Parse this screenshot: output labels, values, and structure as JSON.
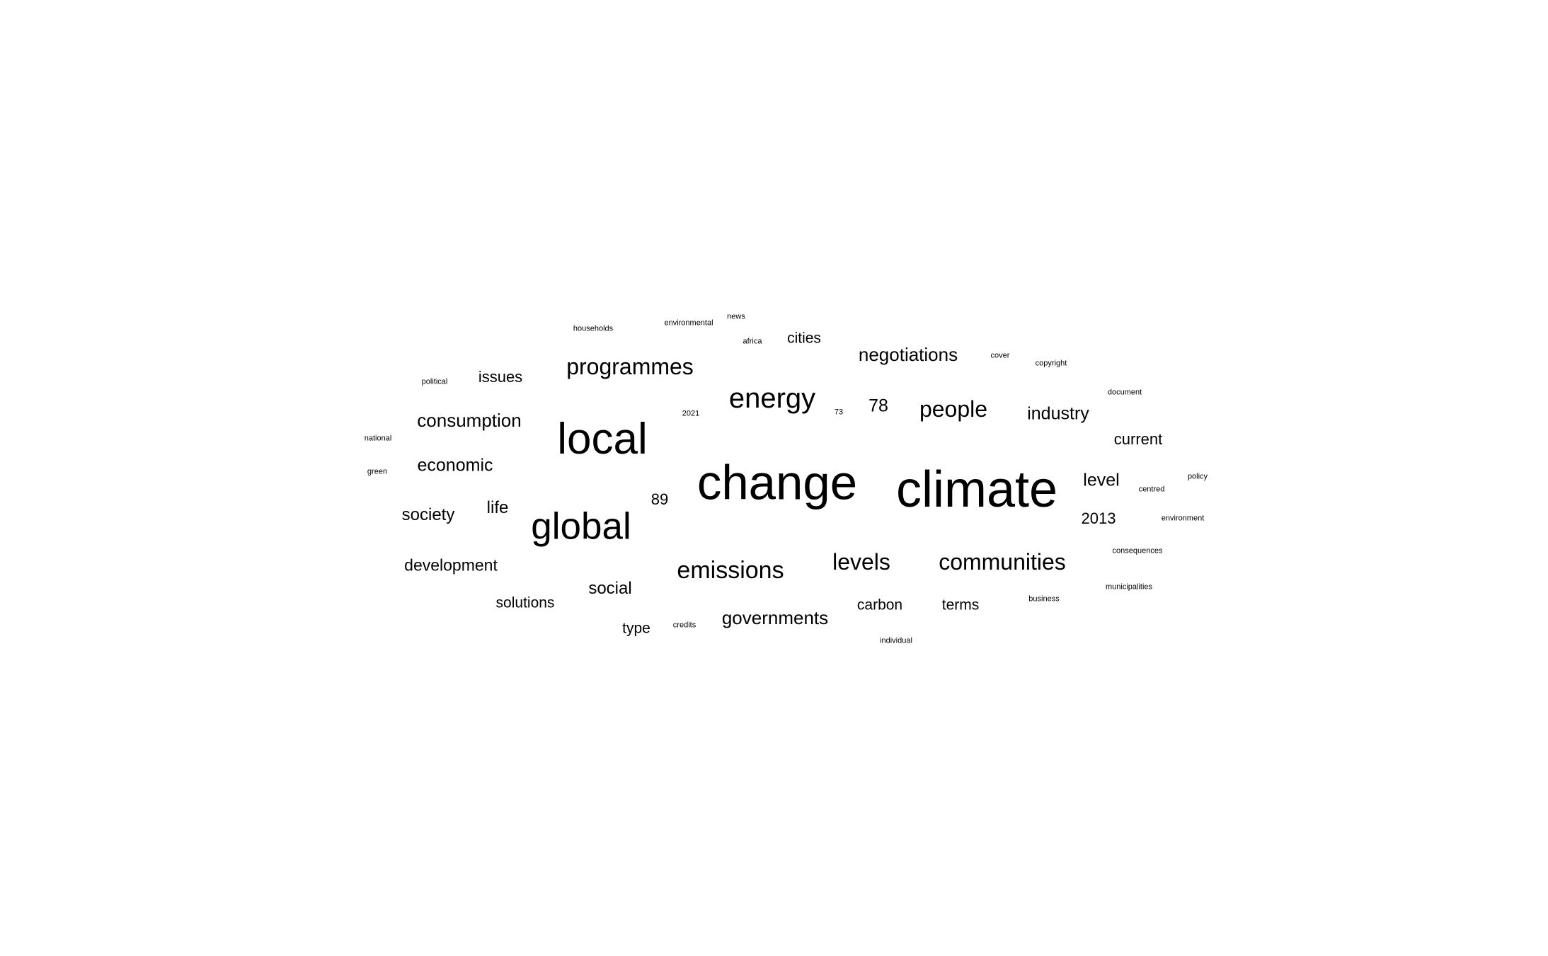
{
  "word_cloud": {
    "text_color": "#000000",
    "background_color": "#ffffff",
    "words": [
      {
        "text": "climate",
        "weight": 100
      },
      {
        "text": "change",
        "weight": 96
      },
      {
        "text": "local",
        "weight": 86
      },
      {
        "text": "global",
        "weight": 74
      },
      {
        "text": "energy",
        "weight": 52
      },
      {
        "text": "emissions",
        "weight": 44
      },
      {
        "text": "communities",
        "weight": 42
      },
      {
        "text": "programmes",
        "weight": 42
      },
      {
        "text": "levels",
        "weight": 42
      },
      {
        "text": "people",
        "weight": 42
      },
      {
        "text": "negotiations",
        "weight": 34
      },
      {
        "text": "consumption",
        "weight": 34
      },
      {
        "text": "governments",
        "weight": 34
      },
      {
        "text": "economic",
        "weight": 33
      },
      {
        "text": "society",
        "weight": 31
      },
      {
        "text": "industry",
        "weight": 32
      },
      {
        "text": "development",
        "weight": 30
      },
      {
        "text": "social",
        "weight": 31
      },
      {
        "text": "level",
        "weight": 32
      },
      {
        "text": "78",
        "weight": 32
      },
      {
        "text": "89",
        "weight": 28
      },
      {
        "text": "life",
        "weight": 31
      },
      {
        "text": "issues",
        "weight": 28
      },
      {
        "text": "cities",
        "weight": 27
      },
      {
        "text": "current",
        "weight": 28
      },
      {
        "text": "2013",
        "weight": 28
      },
      {
        "text": "solutions",
        "weight": 27
      },
      {
        "text": "carbon",
        "weight": 27
      },
      {
        "text": "terms",
        "weight": 27
      },
      {
        "text": "type",
        "weight": 27
      },
      {
        "text": "households",
        "weight": 14
      },
      {
        "text": "environmental",
        "weight": 14
      },
      {
        "text": "news",
        "weight": 13
      },
      {
        "text": "africa",
        "weight": 13
      },
      {
        "text": "political",
        "weight": 13
      },
      {
        "text": "cover",
        "weight": 13
      },
      {
        "text": "copyright",
        "weight": 13
      },
      {
        "text": "2021",
        "weight": 13
      },
      {
        "text": "73",
        "weight": 13
      },
      {
        "text": "document",
        "weight": 13
      },
      {
        "text": "national",
        "weight": 13
      },
      {
        "text": "green",
        "weight": 13
      },
      {
        "text": "policy",
        "weight": 13
      },
      {
        "text": "centred",
        "weight": 13
      },
      {
        "text": "environment",
        "weight": 13
      },
      {
        "text": "consequences",
        "weight": 13
      },
      {
        "text": "municipalities",
        "weight": 13
      },
      {
        "text": "business",
        "weight": 13
      },
      {
        "text": "credits",
        "weight": 13
      },
      {
        "text": "individual",
        "weight": 13
      }
    ]
  }
}
